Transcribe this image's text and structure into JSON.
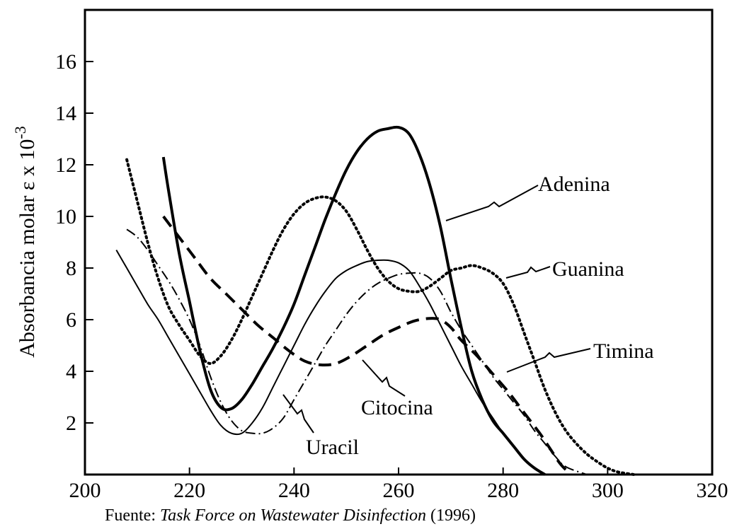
{
  "caption": {
    "prefix": "Fuente: ",
    "source_title": "Task Force on Wastewater Disinfection",
    "suffix": " (1996)"
  },
  "chart_data": {
    "type": "line",
    "title": "",
    "xlabel": "",
    "ylabel": "Absorbancia molar ε x 10",
    "ylabel_exponent": "-3",
    "xlim": [
      200,
      320
    ],
    "ylim": [
      0,
      18
    ],
    "x_ticks": [
      200,
      220,
      240,
      260,
      280,
      300,
      320
    ],
    "y_ticks": [
      2,
      4,
      6,
      8,
      10,
      12,
      14,
      16
    ],
    "grid": false,
    "series": [
      {
        "name": "Adenina",
        "style": "thick-solid",
        "points": [
          [
            215,
            12.3
          ],
          [
            216,
            11.0
          ],
          [
            218,
            8.6
          ],
          [
            220,
            6.7
          ],
          [
            222,
            4.8
          ],
          [
            224,
            3.3
          ],
          [
            226,
            2.6
          ],
          [
            228,
            2.55
          ],
          [
            230,
            2.9
          ],
          [
            232,
            3.5
          ],
          [
            234,
            4.2
          ],
          [
            236,
            4.9
          ],
          [
            238,
            5.7
          ],
          [
            240,
            6.6
          ],
          [
            242,
            7.7
          ],
          [
            244,
            8.8
          ],
          [
            246,
            9.9
          ],
          [
            248,
            10.9
          ],
          [
            250,
            11.8
          ],
          [
            252,
            12.5
          ],
          [
            254,
            13.0
          ],
          [
            256,
            13.3
          ],
          [
            258,
            13.4
          ],
          [
            260,
            13.45
          ],
          [
            262,
            13.2
          ],
          [
            264,
            12.4
          ],
          [
            266,
            11.2
          ],
          [
            268,
            9.6
          ],
          [
            270,
            7.6
          ],
          [
            272,
            5.7
          ],
          [
            274,
            4.0
          ],
          [
            276,
            2.9
          ],
          [
            278,
            2.1
          ],
          [
            280,
            1.6
          ],
          [
            282,
            1.1
          ],
          [
            284,
            0.6
          ],
          [
            286,
            0.25
          ],
          [
            288,
            0.0
          ]
        ]
      },
      {
        "name": "Guanina",
        "style": "dotted",
        "points": [
          [
            208,
            12.2
          ],
          [
            210,
            10.6
          ],
          [
            212,
            9.0
          ],
          [
            214,
            7.6
          ],
          [
            216,
            6.5
          ],
          [
            218,
            5.8
          ],
          [
            220,
            5.2
          ],
          [
            222,
            4.6
          ],
          [
            224,
            4.3
          ],
          [
            226,
            4.6
          ],
          [
            228,
            5.2
          ],
          [
            230,
            6.0
          ],
          [
            232,
            6.9
          ],
          [
            234,
            7.8
          ],
          [
            236,
            8.7
          ],
          [
            238,
            9.5
          ],
          [
            240,
            10.1
          ],
          [
            242,
            10.5
          ],
          [
            244,
            10.7
          ],
          [
            246,
            10.75
          ],
          [
            248,
            10.6
          ],
          [
            250,
            10.2
          ],
          [
            252,
            9.5
          ],
          [
            254,
            8.7
          ],
          [
            256,
            8.0
          ],
          [
            258,
            7.5
          ],
          [
            260,
            7.2
          ],
          [
            262,
            7.1
          ],
          [
            264,
            7.1
          ],
          [
            266,
            7.3
          ],
          [
            268,
            7.6
          ],
          [
            270,
            7.9
          ],
          [
            272,
            8.0
          ],
          [
            274,
            8.1
          ],
          [
            276,
            8.0
          ],
          [
            278,
            7.8
          ],
          [
            280,
            7.4
          ],
          [
            282,
            6.6
          ],
          [
            284,
            5.5
          ],
          [
            286,
            4.4
          ],
          [
            288,
            3.3
          ],
          [
            290,
            2.4
          ],
          [
            292,
            1.7
          ],
          [
            294,
            1.2
          ],
          [
            296,
            0.8
          ],
          [
            298,
            0.5
          ],
          [
            300,
            0.25
          ],
          [
            302,
            0.1
          ],
          [
            305,
            0.0
          ]
        ]
      },
      {
        "name": "Timina",
        "style": "dash-dot",
        "points": [
          [
            208,
            9.5
          ],
          [
            210,
            9.2
          ],
          [
            212,
            8.7
          ],
          [
            214,
            8.1
          ],
          [
            216,
            7.5
          ],
          [
            218,
            6.8
          ],
          [
            220,
            6.0
          ],
          [
            222,
            5.0
          ],
          [
            224,
            3.8
          ],
          [
            226,
            2.8
          ],
          [
            228,
            2.1
          ],
          [
            230,
            1.7
          ],
          [
            232,
            1.6
          ],
          [
            234,
            1.6
          ],
          [
            236,
            1.8
          ],
          [
            238,
            2.2
          ],
          [
            240,
            2.9
          ],
          [
            242,
            3.6
          ],
          [
            244,
            4.3
          ],
          [
            246,
            5.0
          ],
          [
            248,
            5.6
          ],
          [
            250,
            6.2
          ],
          [
            252,
            6.7
          ],
          [
            254,
            7.1
          ],
          [
            256,
            7.4
          ],
          [
            258,
            7.6
          ],
          [
            260,
            7.75
          ],
          [
            262,
            7.8
          ],
          [
            264,
            7.8
          ],
          [
            266,
            7.6
          ],
          [
            268,
            7.1
          ],
          [
            270,
            6.3
          ],
          [
            272,
            5.6
          ],
          [
            274,
            5.0
          ],
          [
            276,
            4.4
          ],
          [
            278,
            3.8
          ],
          [
            280,
            3.3
          ],
          [
            282,
            2.8
          ],
          [
            284,
            2.3
          ],
          [
            286,
            1.7
          ],
          [
            288,
            1.2
          ],
          [
            290,
            0.7
          ],
          [
            292,
            0.3
          ],
          [
            296,
            0.0
          ]
        ]
      },
      {
        "name": "Citocina",
        "style": "dashed",
        "points": [
          [
            215,
            10.0
          ],
          [
            218,
            9.2
          ],
          [
            221,
            8.4
          ],
          [
            224,
            7.6
          ],
          [
            227,
            7.0
          ],
          [
            230,
            6.4
          ],
          [
            233,
            5.8
          ],
          [
            236,
            5.3
          ],
          [
            239,
            4.8
          ],
          [
            242,
            4.4
          ],
          [
            245,
            4.25
          ],
          [
            248,
            4.3
          ],
          [
            251,
            4.6
          ],
          [
            254,
            5.0
          ],
          [
            257,
            5.4
          ],
          [
            260,
            5.7
          ],
          [
            263,
            5.95
          ],
          [
            266,
            6.05
          ],
          [
            268,
            6.0
          ],
          [
            270,
            5.7
          ],
          [
            272,
            5.2
          ],
          [
            275,
            4.6
          ],
          [
            278,
            3.9
          ],
          [
            281,
            3.2
          ],
          [
            284,
            2.4
          ],
          [
            287,
            1.6
          ],
          [
            289,
            1.0
          ],
          [
            291,
            0.4
          ],
          [
            293,
            0.0
          ]
        ]
      },
      {
        "name": "Uracil",
        "style": "thin-solid",
        "points": [
          [
            206,
            8.7
          ],
          [
            208,
            8.0
          ],
          [
            210,
            7.3
          ],
          [
            212,
            6.6
          ],
          [
            214,
            6.0
          ],
          [
            216,
            5.3
          ],
          [
            218,
            4.6
          ],
          [
            220,
            3.9
          ],
          [
            222,
            3.2
          ],
          [
            224,
            2.5
          ],
          [
            226,
            1.9
          ],
          [
            228,
            1.6
          ],
          [
            230,
            1.6
          ],
          [
            232,
            2.0
          ],
          [
            234,
            2.6
          ],
          [
            236,
            3.4
          ],
          [
            238,
            4.2
          ],
          [
            240,
            5.0
          ],
          [
            242,
            5.8
          ],
          [
            244,
            6.5
          ],
          [
            246,
            7.1
          ],
          [
            248,
            7.6
          ],
          [
            250,
            7.9
          ],
          [
            252,
            8.1
          ],
          [
            254,
            8.25
          ],
          [
            256,
            8.3
          ],
          [
            258,
            8.3
          ],
          [
            260,
            8.2
          ],
          [
            262,
            7.9
          ],
          [
            264,
            7.3
          ],
          [
            266,
            6.6
          ],
          [
            268,
            5.8
          ],
          [
            270,
            5.0
          ],
          [
            272,
            4.2
          ],
          [
            274,
            3.5
          ],
          [
            276,
            2.8
          ],
          [
            278,
            2.2
          ],
          [
            280,
            1.6
          ],
          [
            282,
            1.1
          ],
          [
            284,
            0.6
          ],
          [
            286,
            0.25
          ],
          [
            288,
            0.0
          ]
        ]
      }
    ],
    "annotations": [
      {
        "text": "Adenina",
        "series": "Adenina"
      },
      {
        "text": "Guanina",
        "series": "Guanina"
      },
      {
        "text": "Timina",
        "series": "Timina"
      },
      {
        "text": "Citocina",
        "series": "Citocina"
      },
      {
        "text": "Uracil",
        "series": "Uracil"
      }
    ]
  }
}
